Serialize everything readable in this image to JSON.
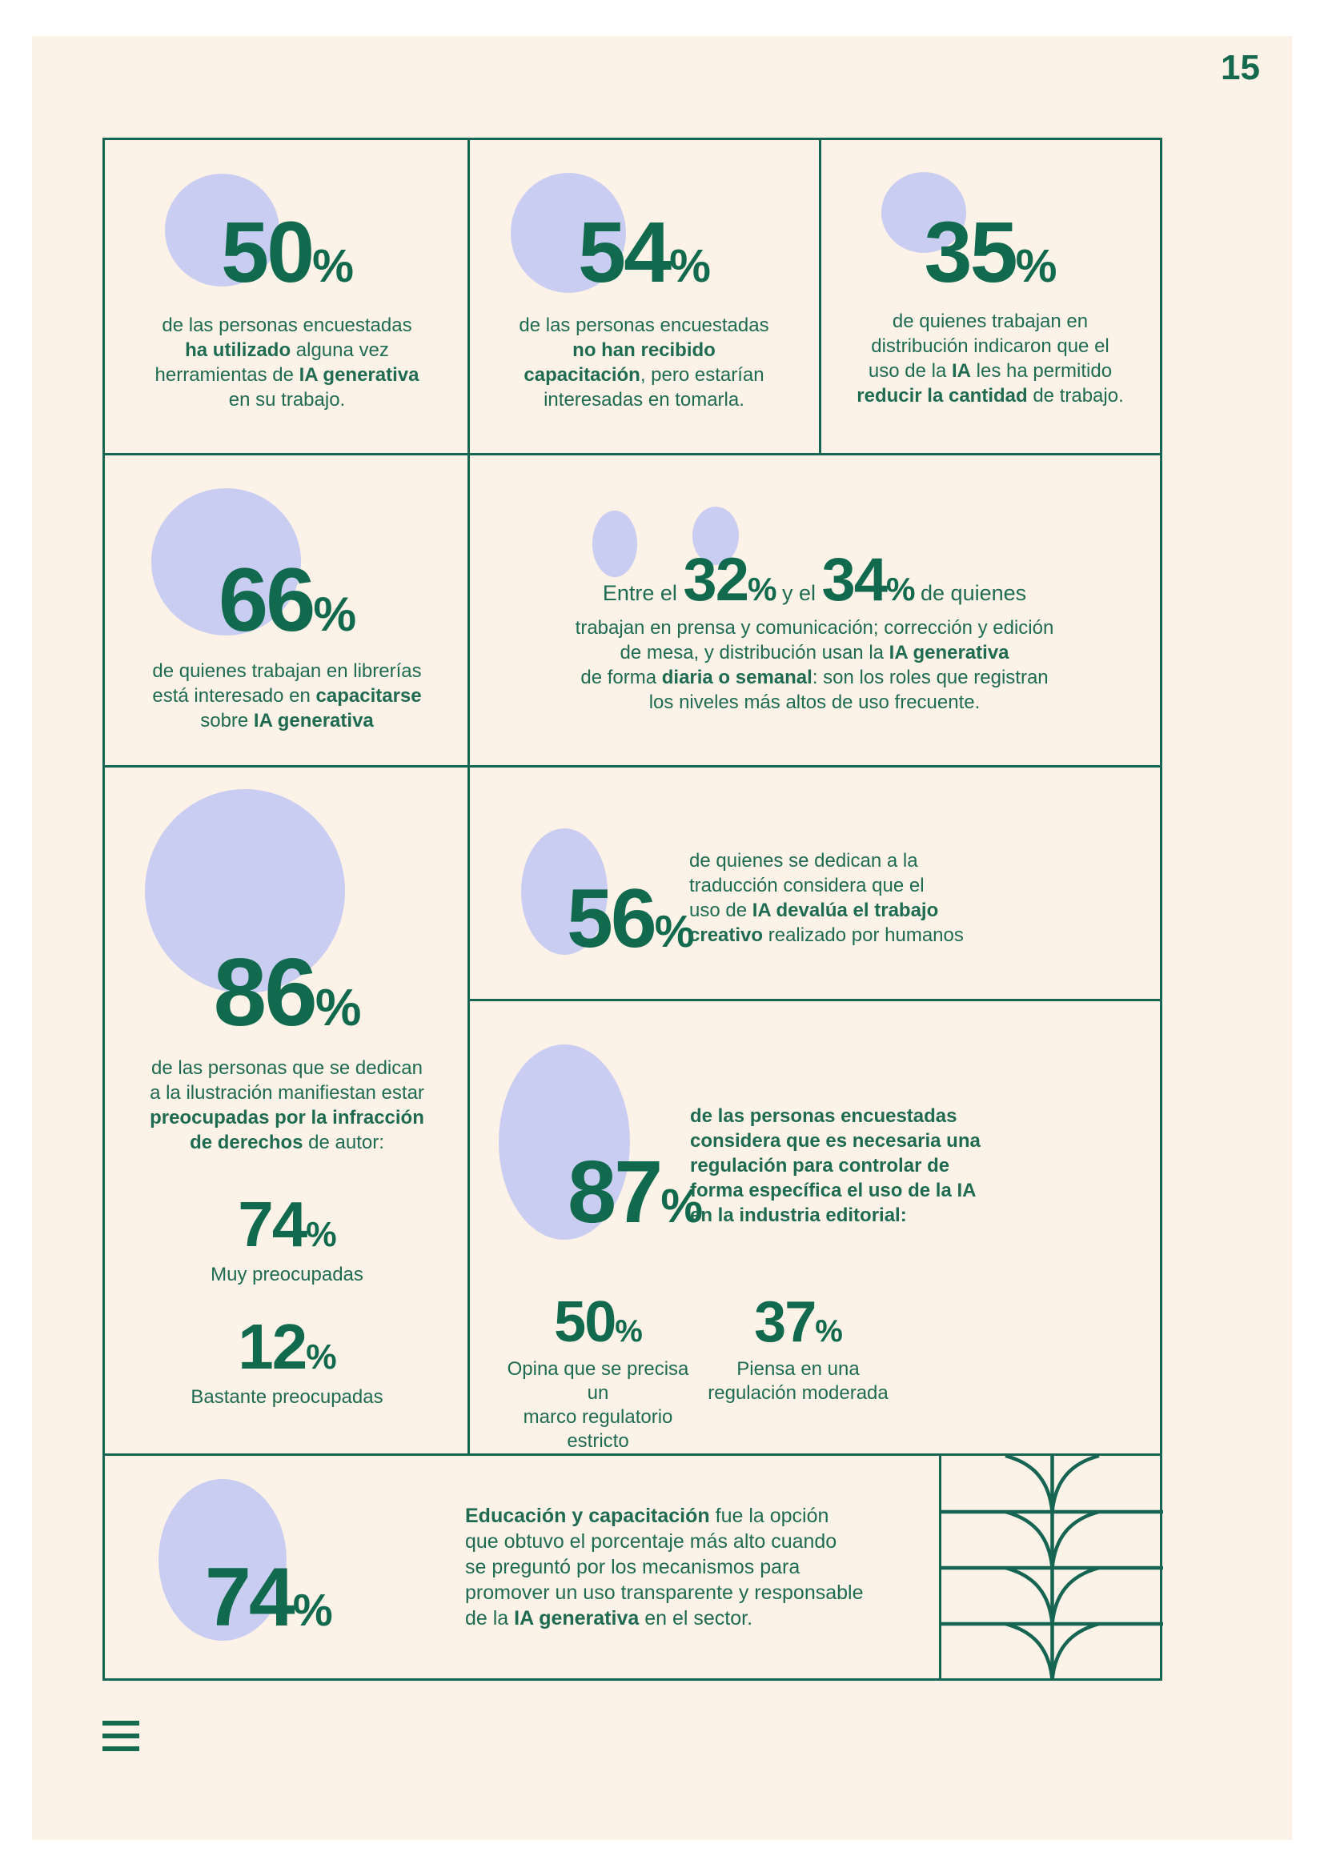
{
  "page_number": "15",
  "percent_sign": "%",
  "colors": {
    "green_text": "#1E6B52",
    "green_number": "#116A4E",
    "green_border": "#166553",
    "lavender_circle": "#C9CDF1",
    "cream_background": "#FCF2E8"
  },
  "icons": {
    "hamburger": "three-horizontal-bars",
    "book_motif": "stacked-book-page-curves"
  },
  "stats": {
    "used_ai": {
      "number": "50",
      "text": [
        [
          "de las personas encuestadas\n",
          0
        ],
        [
          "ha utilizado",
          1
        ],
        [
          " alguna vez\nherramientas de ",
          0
        ],
        [
          "IA generativa",
          1
        ],
        [
          "\nen su trabajo.",
          0
        ]
      ]
    },
    "no_training": {
      "number": "54",
      "text": [
        [
          "de las personas encuestadas\n",
          0
        ],
        [
          "no han recibido\ncapacitación",
          1
        ],
        [
          ", pero estarían\ninteresadas en tomarla.",
          0
        ]
      ]
    },
    "distribution_less_work": {
      "number": "35",
      "text": [
        [
          "de quienes trabajan en\ndistribución indicaron que el\nuso de la ",
          0
        ],
        [
          "IA",
          1
        ],
        [
          " les ha permitido\n",
          0
        ],
        [
          "reducir la cantidad",
          1
        ],
        [
          " de trabajo.",
          0
        ]
      ]
    },
    "bookstores_training": {
      "number": "66",
      "text": [
        [
          "de quienes trabajan en librerías\nestá interesado en ",
          0
        ],
        [
          "capacitarse",
          1
        ],
        [
          "\nsobre ",
          0
        ],
        [
          "IA generativa",
          1
        ]
      ]
    },
    "frequent_use": {
      "prefix": "Entre el ",
      "number_low": "32",
      "connector": " y el ",
      "number_high": "34",
      "suffix": " de quienes",
      "text": [
        [
          "trabajan en prensa y comunicación; corrección y edición\nde mesa, y distribución usan la ",
          0
        ],
        [
          "IA generativa",
          1
        ],
        [
          "\nde forma ",
          0
        ],
        [
          "diaria o semanal",
          1
        ],
        [
          ": son los roles que registran\nlos niveles más altos de uso frecuente.",
          0
        ]
      ]
    },
    "illustrators_copyright": {
      "number": "86",
      "text": [
        [
          "de las personas que se dedican\na la ilustración manifiestan estar\n",
          0
        ],
        [
          "preocupadas por la infracción\nde derechos",
          1
        ],
        [
          " de autor:",
          0
        ]
      ],
      "sub": [
        {
          "number": "74",
          "label": "Muy preocupadas"
        },
        {
          "number": "12",
          "label": "Bastante preocupadas"
        }
      ]
    },
    "translators_devalue": {
      "number": "56",
      "text": [
        [
          "de quienes se dedican a la\ntraducción considera que el\nuso de ",
          0
        ],
        [
          "IA devalúa el trabajo\ncreativo",
          1
        ],
        [
          " realizado por humanos",
          0
        ]
      ]
    },
    "regulation": {
      "number": "87",
      "text": [
        [
          "de las personas encuestadas\nconsidera que es necesaria una\nregulación para controlar de\nforma específica el uso de la IA\nen la industria editorial:",
          1
        ]
      ],
      "sub": [
        {
          "number": "50",
          "label": "Opina que se precisa un\nmarco regulatorio estricto"
        },
        {
          "number": "37",
          "label": "Piensa en una\nregulación moderada"
        }
      ]
    },
    "education_mechanism": {
      "number": "74",
      "text": [
        [
          "Educación y capacitación",
          1
        ],
        [
          " fue la opción\nque obtuvo el porcentaje más alto cuando\nse preguntó por los mecanismos para\npromover un uso transparente y responsable\nde la ",
          0
        ],
        [
          "IA generativa",
          1
        ],
        [
          " en el sector.",
          0
        ]
      ]
    }
  }
}
